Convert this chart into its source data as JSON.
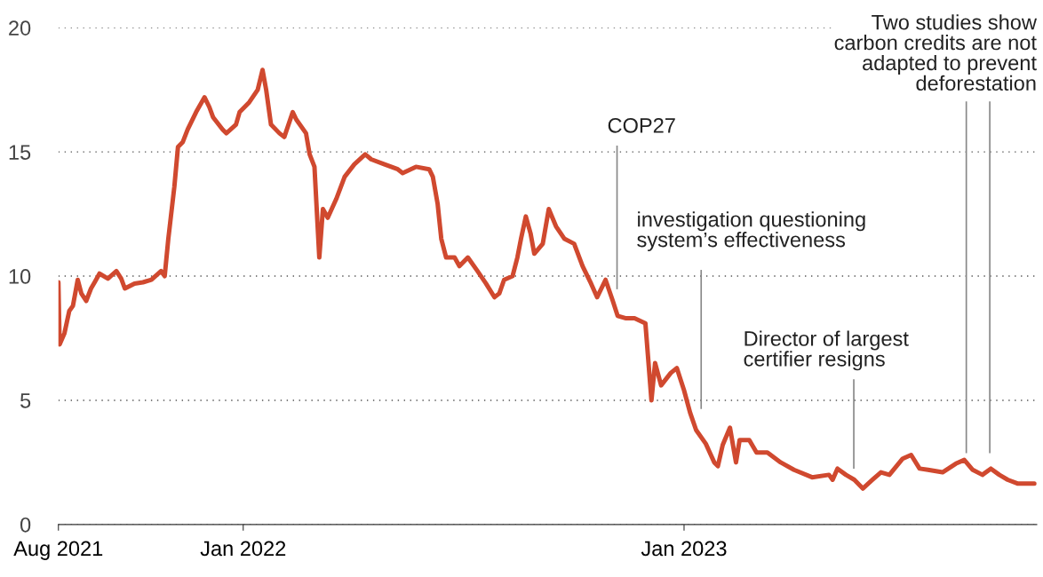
{
  "chart_data": {
    "type": "line",
    "x": [
      "2021-08-01",
      "2021-08-02",
      "2021-08-06",
      "2021-08-10",
      "2021-08-13",
      "2021-08-17",
      "2021-08-20",
      "2021-08-24",
      "2021-08-28",
      "2021-08-31",
      "2021-09-04",
      "2021-09-11",
      "2021-09-18",
      "2021-09-22",
      "2021-09-25",
      "2021-10-03",
      "2021-10-10",
      "2021-10-17",
      "2021-10-25",
      "2021-10-28",
      "2021-10-31",
      "2021-11-05",
      "2021-11-08",
      "2021-11-12",
      "2021-11-16",
      "2021-11-23",
      "2021-11-30",
      "2021-12-04",
      "2021-12-07",
      "2021-12-15",
      "2021-12-18",
      "2021-12-26",
      "2021-12-29",
      "2022-01-06",
      "2022-01-13",
      "2022-01-17",
      "2022-01-20",
      "2022-01-24",
      "2022-01-31",
      "2022-02-04",
      "2022-02-11",
      "2022-02-14",
      "2022-02-22",
      "2022-02-25",
      "2022-03-01",
      "2022-03-05",
      "2022-03-08",
      "2022-03-12",
      "2022-03-19",
      "2022-03-26",
      "2022-04-03",
      "2022-04-12",
      "2022-04-17",
      "2022-04-28",
      "2022-05-09",
      "2022-05-13",
      "2022-05-24",
      "2022-06-04",
      "2022-06-07",
      "2022-06-11",
      "2022-06-14",
      "2022-06-18",
      "2022-06-25",
      "2022-06-29",
      "2022-07-06",
      "2022-07-14",
      "2022-07-21",
      "2022-07-28",
      "2022-08-01",
      "2022-08-05",
      "2022-08-12",
      "2022-08-16",
      "2022-08-19",
      "2022-08-23",
      "2022-08-27",
      "2022-08-30",
      "2022-09-06",
      "2022-09-11",
      "2022-09-17",
      "2022-09-24",
      "2022-10-02",
      "2022-10-09",
      "2022-10-16",
      "2022-10-21",
      "2022-10-28",
      "2022-11-03",
      "2022-11-07",
      "2022-11-14",
      "2022-11-21",
      "2022-11-30",
      "2022-12-05",
      "2022-12-08",
      "2022-12-13",
      "2022-12-21",
      "2022-12-26",
      "2023-01-01",
      "2023-01-06",
      "2023-01-11",
      "2023-01-19",
      "2023-01-26",
      "2023-01-29",
      "2023-02-02",
      "2023-02-08",
      "2023-02-13",
      "2023-02-16",
      "2023-02-24",
      "2023-03-02",
      "2023-03-11",
      "2023-03-22",
      "2023-04-02",
      "2023-04-17",
      "2023-05-01",
      "2023-05-04",
      "2023-05-08",
      "2023-05-15",
      "2023-05-22",
      "2023-05-29",
      "2023-06-06",
      "2023-06-13",
      "2023-06-20",
      "2023-07-01",
      "2023-07-08",
      "2023-07-15",
      "2023-07-22",
      "2023-08-03",
      "2023-08-14",
      "2023-08-21",
      "2023-08-28",
      "2023-09-05",
      "2023-09-12",
      "2023-09-19",
      "2023-09-26",
      "2023-10-04",
      "2023-10-18"
    ],
    "series": [
      {
        "color": "#d0492f",
        "values": [
          9.75,
          7.25,
          7.7,
          8.6,
          8.8,
          9.85,
          9.3,
          9.0,
          9.5,
          9.75,
          10.1,
          9.9,
          10.2,
          9.9,
          9.5,
          9.7,
          9.75,
          9.85,
          10.2,
          10.0,
          11.5,
          13.6,
          15.2,
          15.4,
          15.9,
          16.6,
          17.2,
          16.8,
          16.4,
          15.9,
          15.75,
          16.1,
          16.6,
          17.0,
          17.5,
          18.3,
          17.5,
          16.1,
          15.75,
          15.6,
          16.6,
          16.3,
          15.75,
          14.9,
          14.4,
          10.75,
          12.7,
          12.35,
          13.1,
          14.0,
          14.5,
          14.9,
          14.7,
          14.5,
          14.3,
          14.15,
          14.4,
          14.3,
          14.0,
          12.9,
          11.5,
          10.75,
          10.75,
          10.4,
          10.75,
          10.2,
          9.7,
          9.15,
          9.3,
          9.85,
          10.0,
          10.75,
          11.5,
          12.4,
          11.7,
          10.9,
          11.3,
          12.7,
          12.0,
          11.5,
          11.3,
          10.4,
          9.7,
          9.15,
          9.85,
          9.0,
          8.4,
          8.3,
          8.3,
          8.1,
          5.0,
          6.5,
          5.6,
          6.1,
          6.3,
          5.4,
          4.5,
          3.8,
          3.25,
          2.5,
          2.35,
          3.2,
          3.9,
          2.5,
          3.4,
          3.4,
          2.9,
          2.9,
          2.5,
          2.2,
          1.9,
          2.0,
          1.8,
          2.25,
          2.0,
          1.8,
          1.45,
          1.8,
          2.1,
          2.0,
          2.65,
          2.8,
          2.25,
          2.2,
          2.1,
          2.45,
          2.6,
          2.2,
          2.0,
          2.25,
          2.0,
          1.8,
          1.65,
          1.65
        ]
      }
    ],
    "xlim": [
      "2021-08-01",
      "2023-10-20"
    ],
    "xticks": [
      {
        "value": "2021-08-01",
        "label": "Aug 2021"
      },
      {
        "value": "2022-01-01",
        "label": "Jan 2022"
      },
      {
        "value": "2023-01-01",
        "label": "Jan 2023"
      }
    ],
    "ylim": [
      0,
      20
    ],
    "yticks": [
      0,
      5,
      10,
      15,
      20
    ],
    "grid": "y",
    "legend": false,
    "annotations": [
      "COP27",
      "investigation questioning\nsystem’s effectiveness",
      "Director of largest\ncertifier resigns",
      "Two studies show\ncarbon credits are not\nadapted to prevent\ndeforestation"
    ]
  }
}
